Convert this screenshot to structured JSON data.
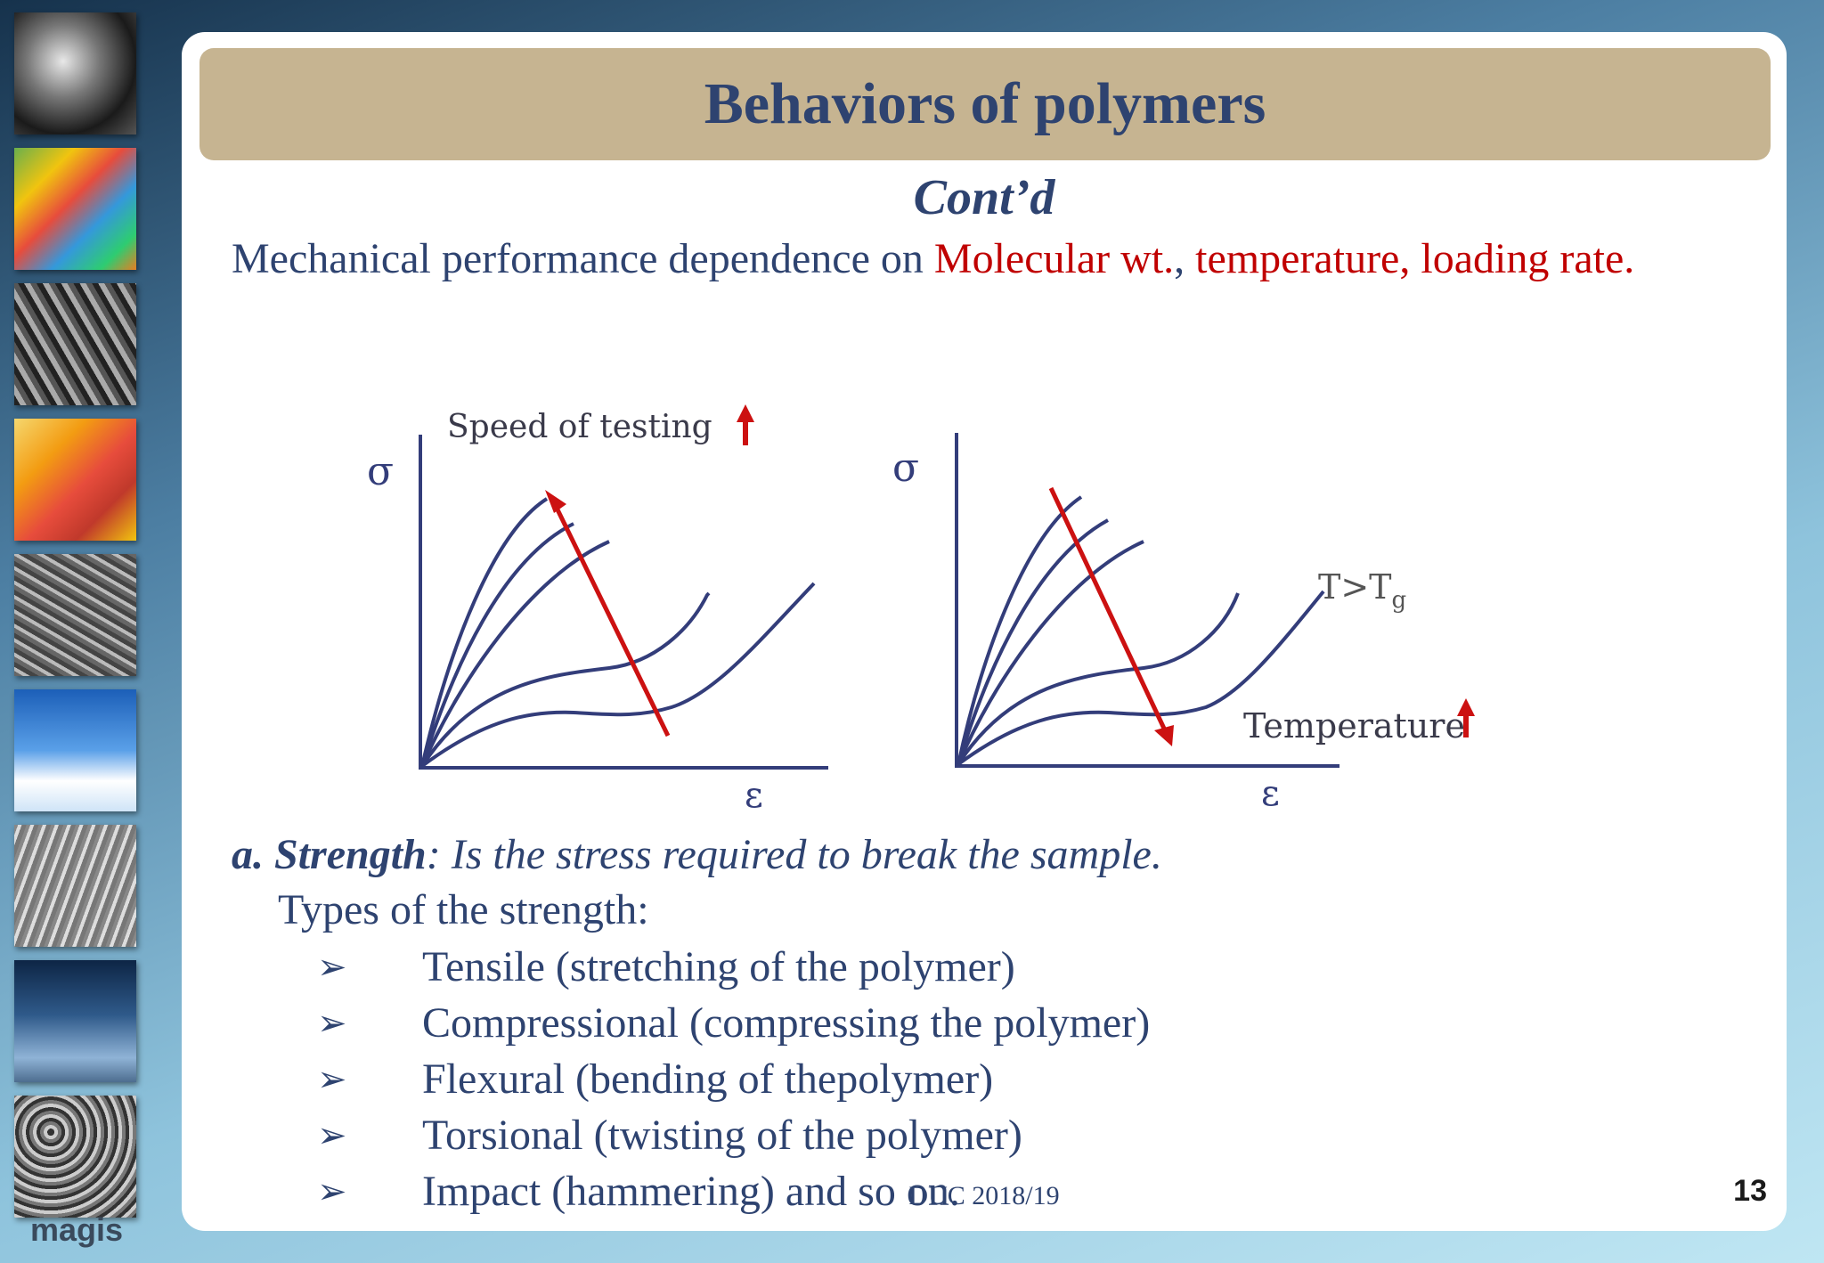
{
  "sidebar": {
    "thumbnails": [
      "turbine-image",
      "simulation-block-image",
      "fibers-micrograph",
      "heat-map-cube",
      "microstructure-image",
      "airplane-image",
      "surface-micrograph",
      "wind-turbine-image",
      "grain-micrograph"
    ],
    "logo_text": "magis"
  },
  "slide": {
    "title": "Behaviors of polymers",
    "subtitle": "Cont’d",
    "intro": {
      "text": "Mechanical performance dependence on ",
      "red1": "Molecular wt.",
      "sep": ", ",
      "red2": "temperature, loading rate."
    },
    "graph1": {
      "y_label": "σ",
      "x_label": "ε",
      "annotation": "Speed of testing"
    },
    "graph2": {
      "y_label": "σ",
      "x_label": "ε",
      "annotation": "Temperature",
      "curve_label_main": "T>T",
      "curve_label_sub": "g"
    },
    "strength": {
      "label": "a. Strength",
      "definition": ": Is the stress required to break the sample."
    },
    "types_heading": "Types of the strength:",
    "bullet_symbol": "➢",
    "bullets": [
      "Tensile (stretching of the polymer)",
      "Compressional (compressing the polymer)",
      "Flexural (bending of thepolymer)",
      "Torsional (twisting of the polymer)",
      "Impact (hammering) and so on."
    ],
    "footer": "DUC 2018/19",
    "page_number": "13"
  },
  "colors": {
    "title_bar": "#c6b491",
    "text": "#2e4370",
    "highlight": "#c00000",
    "curve": "#333d7a",
    "arrow": "#cc1111"
  }
}
